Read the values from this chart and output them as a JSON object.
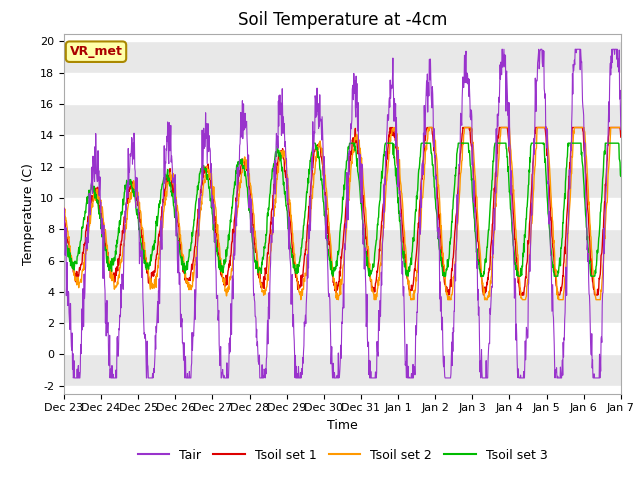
{
  "title": "Soil Temperature at -4cm",
  "xlabel": "Time",
  "ylabel": "Temperature (C)",
  "ylim": [
    -2.5,
    20.5
  ],
  "ytick_values": [
    -2,
    0,
    2,
    4,
    6,
    8,
    10,
    12,
    14,
    16,
    18,
    20
  ],
  "xtick_labels": [
    "Dec 23",
    "Dec 24",
    "Dec 25",
    "Dec 26",
    "Dec 27",
    "Dec 28",
    "Dec 29",
    "Dec 30",
    "Dec 31",
    "Jan 1",
    "Jan 2",
    "Jan 3",
    "Jan 4",
    "Jan 5",
    "Jan 6",
    "Jan 7"
  ],
  "colors": {
    "Tair": "#9933cc",
    "Tsoil1": "#dd0000",
    "Tsoil2": "#ff9900",
    "Tsoil3": "#00bb00"
  },
  "legend_labels": [
    "Tair",
    "Tsoil set 1",
    "Tsoil set 2",
    "Tsoil set 3"
  ],
  "annotation_text": "VR_met",
  "annotation_bg": "#ffffaa",
  "annotation_border": "#aa8800",
  "annotation_text_color": "#aa0000",
  "background_color": "#ffffff",
  "grid_color_light": "#e8e8e8",
  "title_fontsize": 12,
  "axis_label_fontsize": 9,
  "tick_fontsize": 8,
  "legend_fontsize": 9
}
